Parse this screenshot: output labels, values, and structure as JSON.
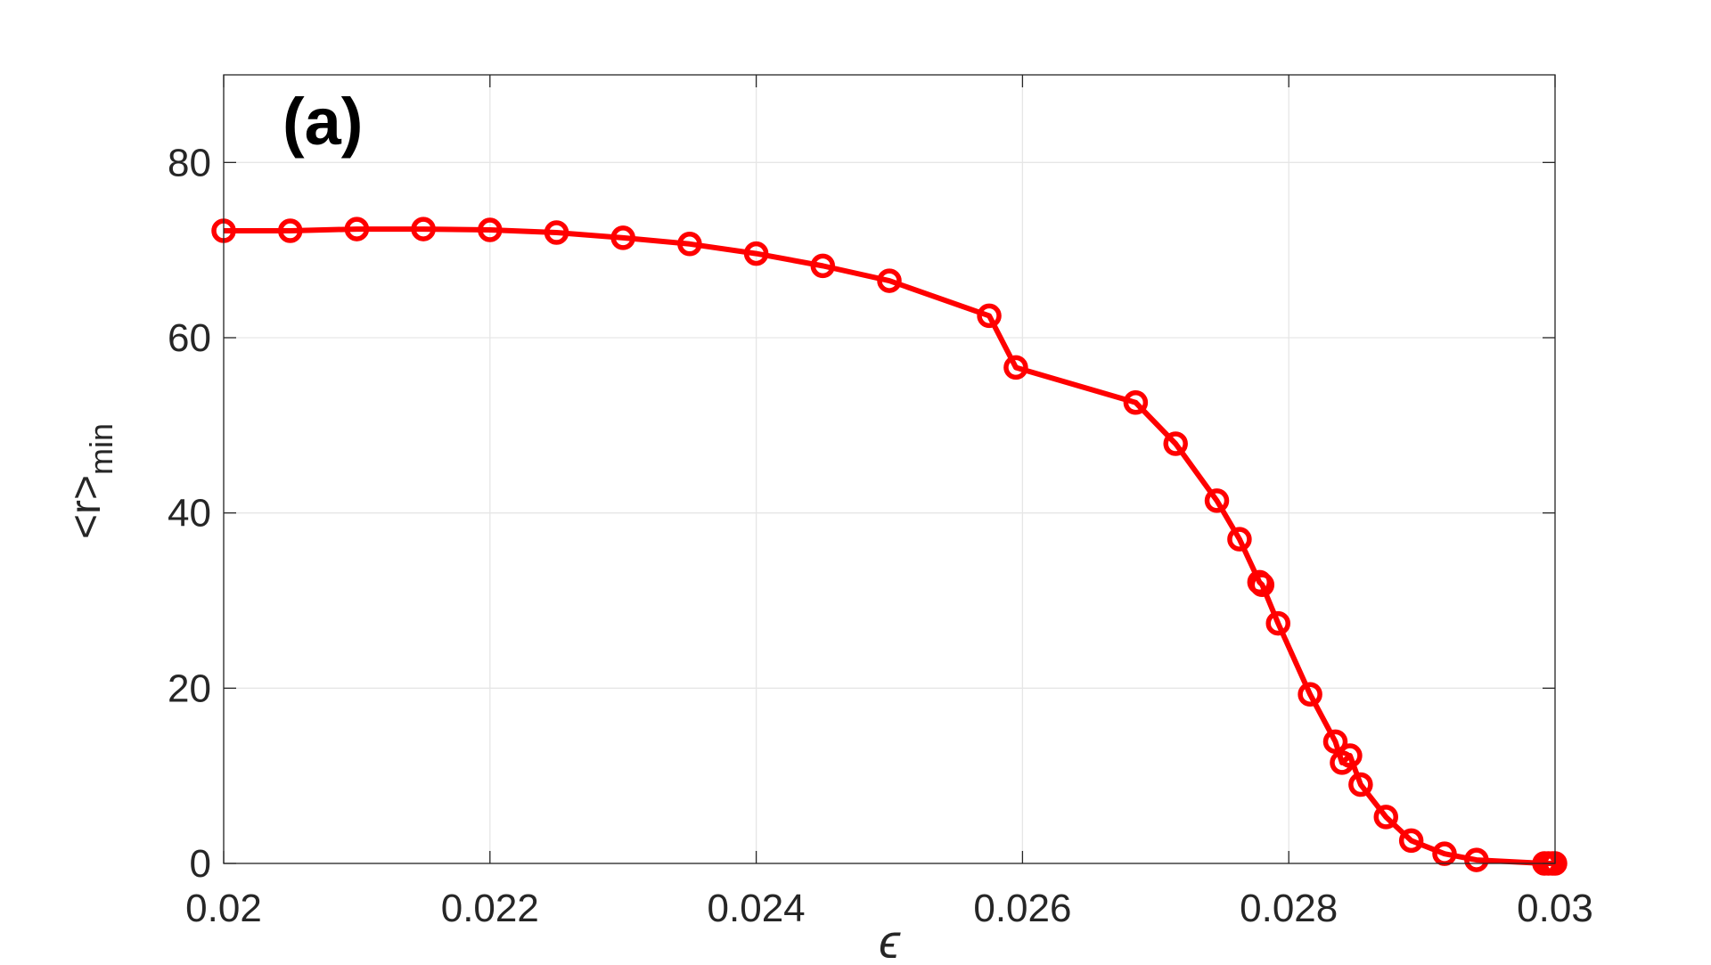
{
  "chart_data": {
    "type": "line",
    "annotation": "(a)",
    "xlabel": "ϵ",
    "ylabel": {
      "text": "<r>",
      "subscript": "min"
    },
    "xlim": [
      0.02,
      0.03
    ],
    "ylim": [
      0,
      90
    ],
    "xticks": [
      0.02,
      0.022,
      0.024,
      0.026,
      0.028,
      0.03
    ],
    "yticks": [
      0,
      20,
      40,
      60,
      80
    ],
    "grid": true,
    "series": [
      {
        "color": "#ff0000",
        "x": [
          0.02,
          0.0205,
          0.021,
          0.0215,
          0.022,
          0.0225,
          0.023,
          0.0235,
          0.024,
          0.0245,
          0.025,
          0.02575,
          0.02595,
          0.02685,
          0.02715,
          0.02746,
          0.02763,
          0.02778,
          0.0278,
          0.02792,
          0.02816,
          0.02835,
          0.0284,
          0.02846,
          0.02854,
          0.02873,
          0.02892,
          0.02917,
          0.02941,
          0.02992,
          0.02995,
          0.02998,
          0.03
        ],
        "values": [
          72.2,
          72.2,
          72.4,
          72.4,
          72.3,
          72.0,
          71.4,
          70.7,
          69.6,
          68.2,
          66.5,
          62.5,
          56.6,
          52.6,
          47.9,
          41.4,
          37.0,
          32.1,
          31.8,
          27.4,
          19.3,
          13.9,
          11.5,
          12.3,
          9.0,
          5.3,
          2.6,
          1.1,
          0.4,
          0,
          0,
          0,
          0
        ]
      }
    ]
  }
}
